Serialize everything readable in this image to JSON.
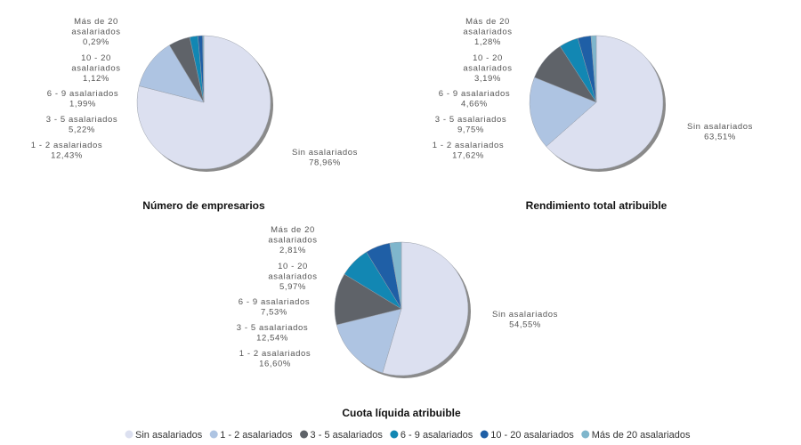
{
  "chart_data": [
    {
      "type": "pie",
      "title": "Número de empresarios",
      "categories": [
        "Sin asalariados",
        "1 - 2 asalariados",
        "3 - 5 asalariados",
        "6 - 9 asalariados",
        "10 - 20 asalariados",
        "Más de 20 asalariados"
      ],
      "values": [
        78.96,
        12.43,
        5.22,
        1.99,
        1.12,
        0.29
      ],
      "labels": [
        "78,96%",
        "12,43%",
        "5,22%",
        "1,99%",
        "1,12%",
        "0,29%"
      ]
    },
    {
      "type": "pie",
      "title": "Rendimiento total atribuible",
      "categories": [
        "Sin asalariados",
        "1 - 2 asalariados",
        "3 - 5 asalariados",
        "6 - 9 asalariados",
        "10 - 20 asalariados",
        "Más de 20 asalariados"
      ],
      "values": [
        63.51,
        17.62,
        9.75,
        4.66,
        3.19,
        1.28
      ],
      "labels": [
        "63,51%",
        "17,62%",
        "9,75%",
        "4,66%",
        "3,19%",
        "1,28%"
      ]
    },
    {
      "type": "pie",
      "title": "Cuota líquida atribuible",
      "categories": [
        "Sin asalariados",
        "1 - 2 asalariados",
        "3 - 5 asalariados",
        "6 - 9 asalariados",
        "10 - 20 asalariados",
        "Más de 20 asalariados"
      ],
      "values": [
        54.55,
        16.6,
        12.54,
        7.53,
        5.97,
        2.81
      ],
      "labels": [
        "54,55%",
        "16,60%",
        "12,54%",
        "7,53%",
        "5,97%",
        "2,81%"
      ]
    }
  ],
  "label_lines": {
    "Sin asalariados": [
      "Sin asalariados"
    ],
    "1 - 2 asalariados": [
      "1 - 2 asalariados"
    ],
    "3 - 5 asalariados": [
      "3 - 5 asalariados"
    ],
    "6 - 9 asalariados": [
      "6 - 9 asalariados"
    ],
    "10 - 20 asalariados": [
      "10 - 20",
      "asalariados"
    ],
    "Más de 20 asalariados": [
      "Más de 20",
      "asalariados"
    ]
  },
  "legend": {
    "placement": "bottom",
    "items": [
      "Sin asalariados",
      "1 - 2 asalariados",
      "3 - 5 asalariados",
      "6 - 9 asalariados",
      "10 - 20 asalariados",
      "Más de 20 asalariados"
    ]
  },
  "colors": [
    "#dce0f0",
    "#aec4e2",
    "#5f6369",
    "#1287b3",
    "#1f5fa6",
    "#7fb6cc"
  ],
  "shadow_color": "#8a8a8a"
}
